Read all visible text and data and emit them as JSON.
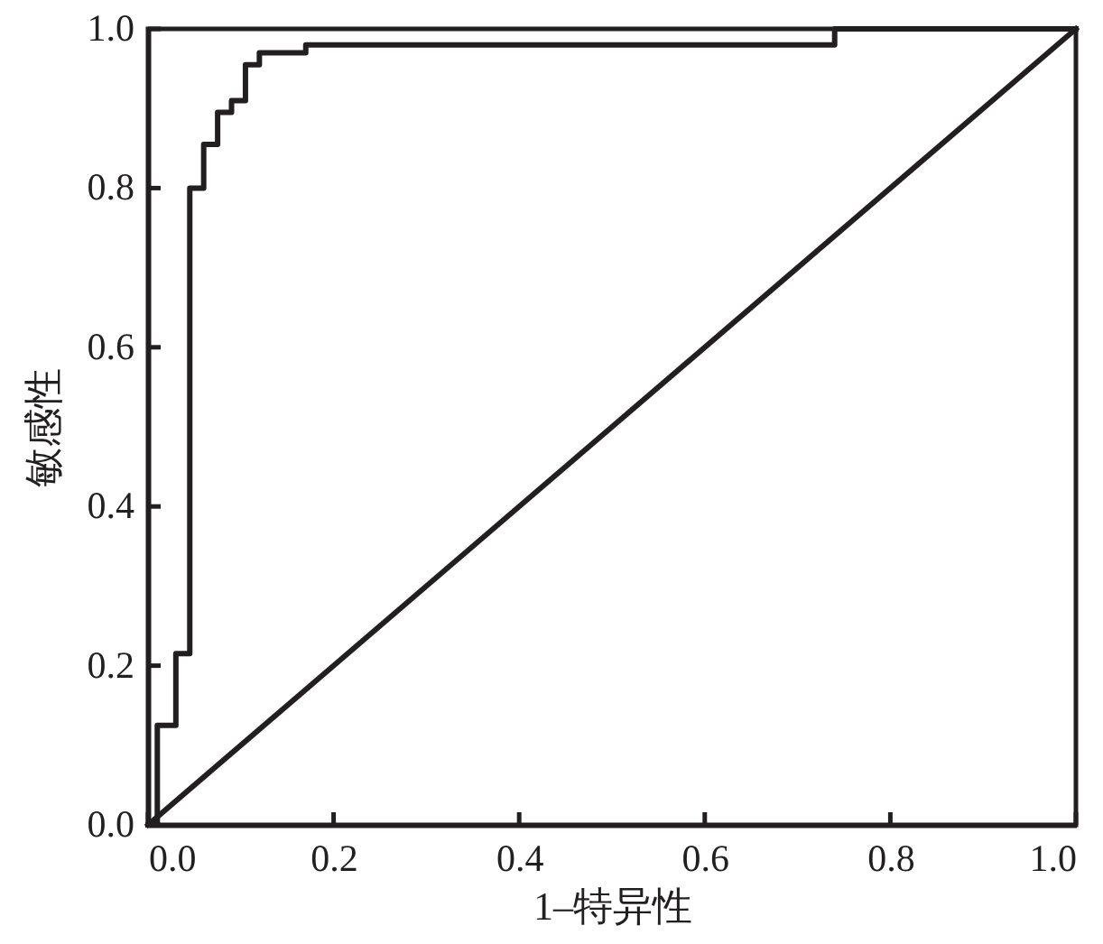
{
  "chart_data": {
    "type": "step",
    "xlabel": "1–特异性",
    "ylabel": "敏感性",
    "series": [
      {
        "color": "#231f20",
        "x": [
          0,
          0.01,
          0.03,
          0.045,
          0.06,
          0.075,
          0.09,
          0.105,
          0.12,
          0.17,
          0.74,
          1.0
        ],
        "values": [
          0,
          0.125,
          0.215,
          0.8,
          0.855,
          0.895,
          0.91,
          0.955,
          0.97,
          0.98,
          1.0,
          1.0
        ]
      },
      {
        "type": "line",
        "color": "#231f20",
        "x": [
          0,
          1.0
        ],
        "values": [
          0,
          1.0
        ]
      }
    ],
    "xlim": [
      0,
      1.0
    ],
    "ylim": [
      0,
      1.0
    ],
    "xticks": [
      {
        "value": 0,
        "label": "0.0"
      },
      0.2,
      0.4,
      0.6,
      0.8,
      {
        "value": 1.0,
        "label": "1.0"
      }
    ],
    "yticks": [
      {
        "value": 0,
        "label": "0.0"
      },
      0.2,
      0.4,
      0.6,
      0.8,
      {
        "value": 1.0,
        "label": "1.0"
      }
    ]
  }
}
